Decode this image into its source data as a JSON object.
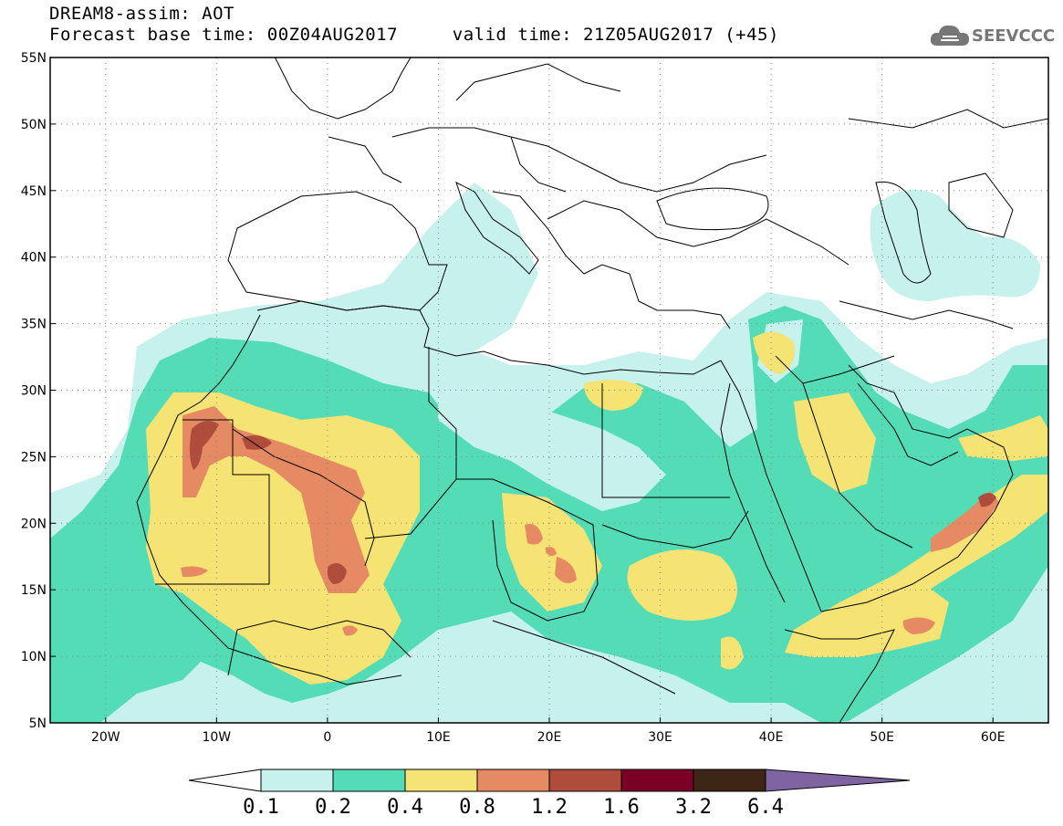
{
  "title": {
    "line1": "DREAM8-assim: AOT",
    "line2_base": "Forecast base time: 00Z04AUG2017",
    "line2_valid": "valid time: 21Z05AUG2017 (+45)"
  },
  "logo": {
    "text": "SEEVCCC",
    "icon": "cloud-icon"
  },
  "map": {
    "lon_range": [
      -25,
      65
    ],
    "lat_range": [
      5,
      55
    ],
    "lat_ticks": [
      "55N",
      "50N",
      "45N",
      "40N",
      "35N",
      "30N",
      "25N",
      "20N",
      "15N",
      "10N",
      "5N"
    ],
    "lon_ticks": [
      "20W",
      "10W",
      "0",
      "10E",
      "20E",
      "30E",
      "40E",
      "50E",
      "60E"
    ],
    "grid": "dotted"
  },
  "colorbar": {
    "colors": [
      "#ffffff",
      "#c6f1ec",
      "#54dcb7",
      "#f5e474",
      "#e68a64",
      "#b04c3c",
      "#7a0026",
      "#3e2616",
      "#8064a2"
    ],
    "labels": [
      "0.1",
      "0.2",
      "0.4",
      "0.8",
      "1.2",
      "1.6",
      "3.2",
      "6.4"
    ]
  }
}
